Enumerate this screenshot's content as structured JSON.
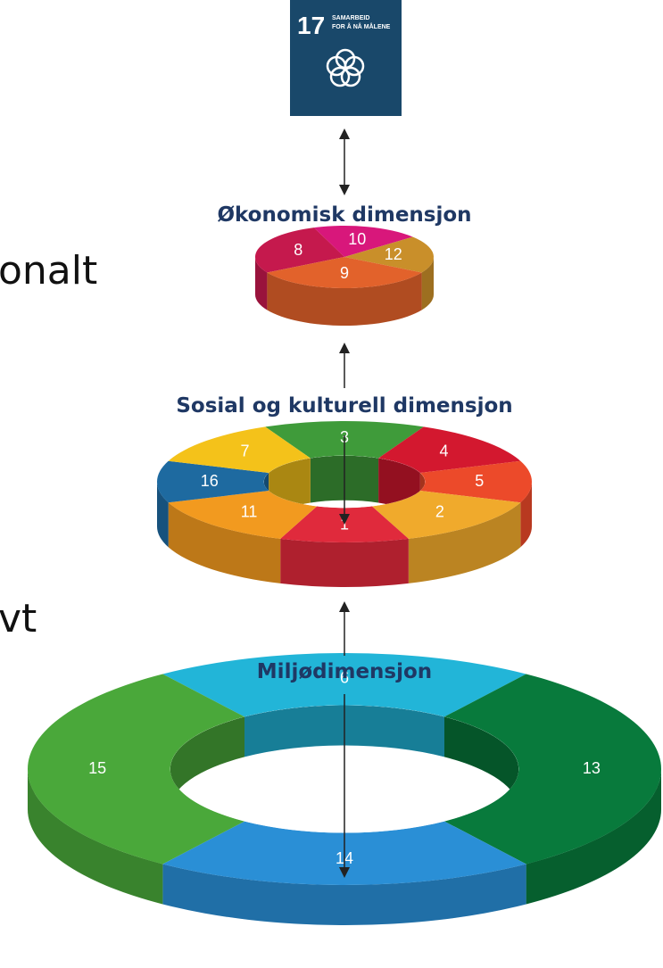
{
  "goal17": {
    "number": "17",
    "title": [
      "SAMARBEID",
      "FOR Å NÅ MÅLENE"
    ]
  },
  "side_text": [
    "onalt",
    "vt"
  ],
  "layers": [
    {
      "label": "Økonomisk dimensjon",
      "segments": [
        "10",
        "8",
        "12",
        "9"
      ]
    },
    {
      "label": "Sosial og kulturell dimensjon",
      "segments": [
        "3",
        "4",
        "5",
        "2",
        "1",
        "11",
        "16",
        "7"
      ]
    },
    {
      "label": "Miljødimensjon",
      "segments": [
        "6",
        "13",
        "14",
        "15"
      ]
    }
  ]
}
